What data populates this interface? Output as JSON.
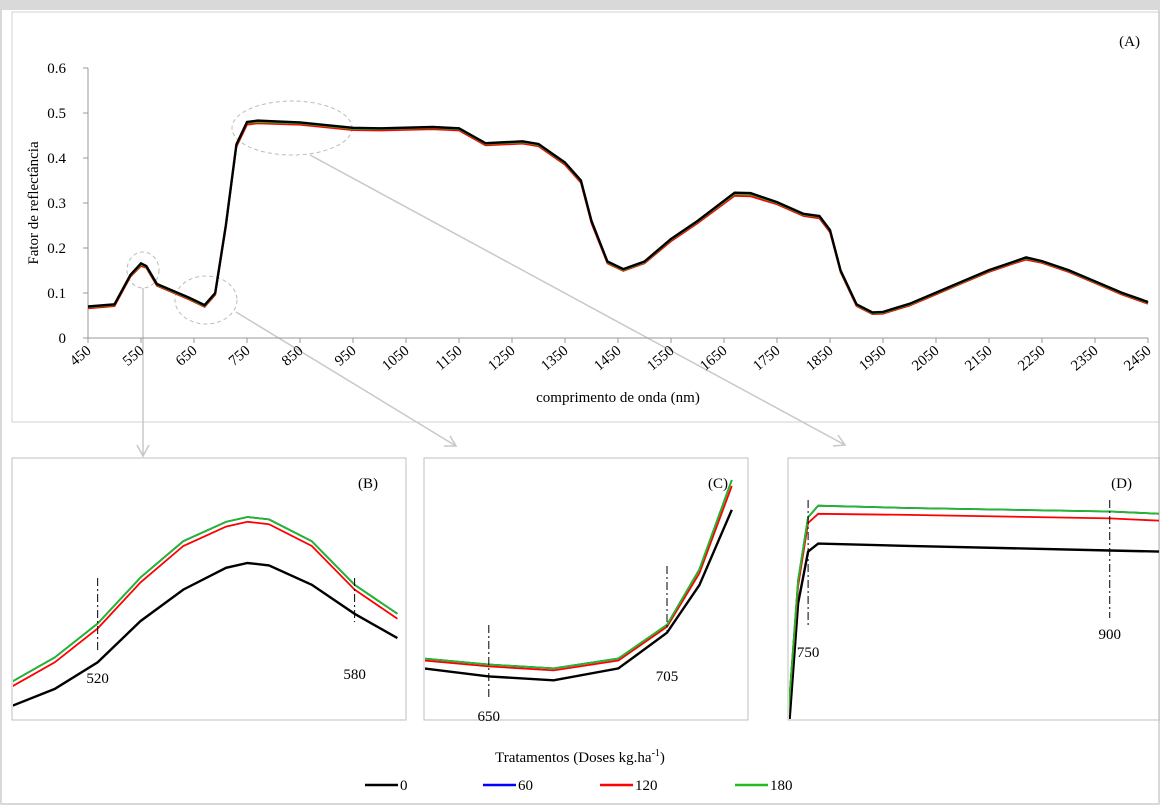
{
  "chart_data": [
    {
      "type": "line",
      "panel": "(A)",
      "y_label": "Fator de reflectância",
      "x_label": "comprimento de onda (nm)",
      "xlim": [
        450,
        2450
      ],
      "ylim": [
        0,
        0.6
      ],
      "xticks": [
        450,
        550,
        650,
        750,
        850,
        950,
        1050,
        1150,
        1250,
        1350,
        1450,
        1550,
        1650,
        1750,
        1850,
        1950,
        2050,
        2150,
        2250,
        2350,
        2450
      ],
      "yticks": [
        0,
        0.1,
        0.2,
        0.3,
        0.4,
        0.5,
        0.6
      ],
      "legend_title": "Tratamentos (Doses kg.ha",
      "legend_title_sup": "-1",
      "legend_title_end": ")",
      "x": [
        450,
        500,
        530,
        550,
        560,
        580,
        600,
        640,
        670,
        690,
        710,
        730,
        750,
        770,
        850,
        950,
        1000,
        1100,
        1150,
        1200,
        1270,
        1300,
        1350,
        1380,
        1400,
        1430,
        1460,
        1500,
        1550,
        1600,
        1670,
        1700,
        1750,
        1800,
        1830,
        1850,
        1870,
        1900,
        1930,
        1950,
        2000,
        2050,
        2100,
        2150,
        2200,
        2220,
        2250,
        2300,
        2350,
        2400,
        2450
      ],
      "series": [
        {
          "name": "0",
          "color": "#000000",
          "values": [
            0.07,
            0.075,
            0.14,
            0.166,
            0.16,
            0.12,
            0.11,
            0.09,
            0.073,
            0.1,
            0.25,
            0.43,
            0.48,
            0.483,
            0.479,
            0.467,
            0.466,
            0.469,
            0.466,
            0.433,
            0.437,
            0.431,
            0.39,
            0.35,
            0.26,
            0.17,
            0.153,
            0.17,
            0.22,
            0.26,
            0.323,
            0.322,
            0.302,
            0.276,
            0.271,
            0.24,
            0.15,
            0.075,
            0.057,
            0.058,
            0.076,
            0.101,
            0.126,
            0.151,
            0.171,
            0.179,
            0.171,
            0.151,
            0.126,
            0.101,
            0.08
          ]
        },
        {
          "name": "60",
          "color": "#0000ff",
          "values": [
            0.068,
            0.073,
            0.138,
            0.163,
            0.158,
            0.118,
            0.108,
            0.088,
            0.071,
            0.098,
            0.248,
            0.428,
            0.478,
            0.48,
            0.477,
            0.465,
            0.464,
            0.467,
            0.464,
            0.431,
            0.435,
            0.429,
            0.388,
            0.348,
            0.258,
            0.168,
            0.151,
            0.168,
            0.218,
            0.258,
            0.32,
            0.319,
            0.3,
            0.274,
            0.269,
            0.238,
            0.148,
            0.073,
            0.055,
            0.056,
            0.074,
            0.099,
            0.124,
            0.149,
            0.169,
            0.177,
            0.169,
            0.149,
            0.124,
            0.099,
            0.078
          ]
        },
        {
          "name": "120",
          "color": "#ff0000",
          "values": [
            0.066,
            0.071,
            0.136,
            0.16,
            0.156,
            0.116,
            0.106,
            0.086,
            0.069,
            0.096,
            0.245,
            0.425,
            0.474,
            0.477,
            0.474,
            0.462,
            0.461,
            0.464,
            0.461,
            0.428,
            0.432,
            0.426,
            0.385,
            0.345,
            0.255,
            0.166,
            0.149,
            0.166,
            0.215,
            0.255,
            0.316,
            0.315,
            0.297,
            0.271,
            0.266,
            0.235,
            0.146,
            0.071,
            0.053,
            0.054,
            0.072,
            0.097,
            0.122,
            0.147,
            0.167,
            0.174,
            0.167,
            0.147,
            0.122,
            0.097,
            0.076
          ]
        },
        {
          "name": "180",
          "color": "#22bb22",
          "values": [
            0.068,
            0.073,
            0.138,
            0.163,
            0.158,
            0.118,
            0.108,
            0.088,
            0.071,
            0.098,
            0.248,
            0.428,
            0.478,
            0.48,
            0.477,
            0.465,
            0.464,
            0.467,
            0.464,
            0.431,
            0.435,
            0.429,
            0.388,
            0.348,
            0.258,
            0.168,
            0.151,
            0.168,
            0.218,
            0.258,
            0.32,
            0.319,
            0.3,
            0.274,
            0.269,
            0.238,
            0.148,
            0.073,
            0.055,
            0.056,
            0.074,
            0.099,
            0.124,
            0.149,
            0.169,
            0.177,
            0.169,
            0.149,
            0.124,
            0.099,
            0.078
          ]
        }
      ]
    },
    {
      "type": "line",
      "panel": "(B)",
      "xlim": [
        500,
        592
      ],
      "ylim": [
        0.085,
        0.175
      ],
      "markers": [
        520,
        580
      ],
      "x": [
        500,
        510,
        520,
        530,
        540,
        550,
        555,
        560,
        570,
        580,
        590
      ],
      "series": [
        {
          "color": "#000000",
          "values": [
            0.09,
            0.097,
            0.108,
            0.125,
            0.138,
            0.147,
            0.149,
            0.148,
            0.14,
            0.128,
            0.118
          ]
        },
        {
          "color": "#0000ff",
          "values": [
            0.1,
            0.11,
            0.124,
            0.143,
            0.158,
            0.166,
            0.168,
            0.167,
            0.158,
            0.14,
            0.128
          ]
        },
        {
          "color": "#ff0000",
          "values": [
            0.098,
            0.108,
            0.122,
            0.141,
            0.156,
            0.164,
            0.166,
            0.165,
            0.156,
            0.138,
            0.126
          ]
        },
        {
          "color": "#22bb22",
          "values": [
            0.1,
            0.11,
            0.124,
            0.143,
            0.158,
            0.166,
            0.168,
            0.167,
            0.158,
            0.14,
            0.128
          ]
        }
      ]
    },
    {
      "type": "line",
      "panel": "(C)",
      "xlim": [
        630,
        730
      ],
      "ylim": [
        0.06,
        0.18
      ],
      "markers": [
        650,
        705
      ],
      "x": [
        630,
        650,
        670,
        690,
        705,
        715,
        725
      ],
      "series": [
        {
          "color": "#000000",
          "values": [
            0.085,
            0.081,
            0.079,
            0.085,
            0.103,
            0.127,
            0.165
          ]
        },
        {
          "color": "#0000ff",
          "values": [
            0.09,
            0.087,
            0.085,
            0.09,
            0.107,
            0.135,
            0.18
          ]
        },
        {
          "color": "#ff0000",
          "values": [
            0.089,
            0.086,
            0.084,
            0.089,
            0.106,
            0.133,
            0.177
          ]
        },
        {
          "color": "#22bb22",
          "values": [
            0.09,
            0.087,
            0.085,
            0.09,
            0.107,
            0.135,
            0.18
          ]
        }
      ]
    },
    {
      "type": "line",
      "panel": "(D)",
      "xlim": [
        740,
        925
      ],
      "ylim": [
        0.3,
        0.49
      ],
      "markers": [
        750,
        900
      ],
      "x": [
        740,
        745,
        750,
        755,
        800,
        900,
        925
      ],
      "series": [
        {
          "color": "#000000",
          "values": [
            0.28,
            0.4,
            0.445,
            0.452,
            0.45,
            0.446,
            0.445
          ]
        },
        {
          "color": "#0000ff",
          "values": [
            0.3,
            0.42,
            0.475,
            0.485,
            0.483,
            0.48,
            0.478
          ]
        },
        {
          "color": "#ff0000",
          "values": [
            0.3,
            0.415,
            0.47,
            0.478,
            0.477,
            0.474,
            0.472
          ]
        },
        {
          "color": "#22bb22",
          "values": [
            0.3,
            0.42,
            0.475,
            0.485,
            0.483,
            0.48,
            0.478
          ]
        }
      ]
    }
  ]
}
